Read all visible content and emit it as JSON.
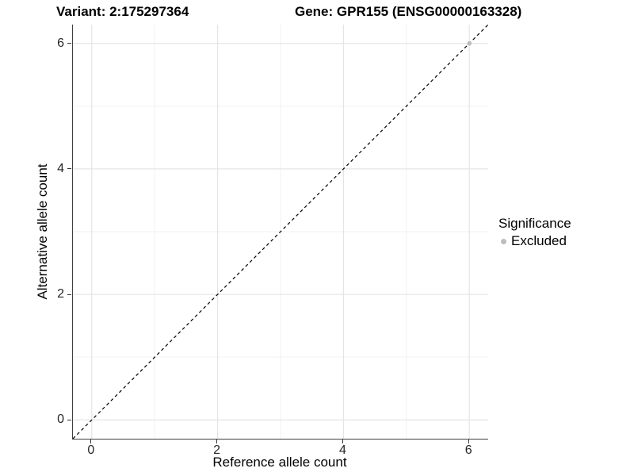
{
  "chart_data": {
    "type": "scatter",
    "titles": {
      "left": "Variant: 2:175297364",
      "right": "Gene: GPR155 (ENSG00000163328)"
    },
    "xlabel": "Reference allele count",
    "ylabel": "Alternative allele count",
    "xlim": [
      -0.3,
      6.3
    ],
    "ylim": [
      -0.3,
      6.3
    ],
    "x_ticks": [
      0,
      2,
      4,
      6
    ],
    "y_ticks": [
      0,
      2,
      4,
      6
    ],
    "x_minor_ticks": [
      1,
      3,
      5
    ],
    "y_minor_ticks": [
      1,
      3,
      5
    ],
    "grid": "on",
    "legend": {
      "title": "Significance",
      "position": "right",
      "items": [
        {
          "label": "Excluded",
          "color": "#bdbdbd"
        }
      ]
    },
    "series": [
      {
        "name": "Excluded",
        "color": "#bdbdbd",
        "points": [
          [
            6,
            6
          ]
        ]
      }
    ],
    "reference_line": {
      "slope": 1,
      "intercept": 0,
      "style": "dashed",
      "color": "#000000"
    }
  },
  "style": {
    "grid_major_color": "#e5e5e5",
    "grid_minor_color": "#f2f2f2",
    "axis_line_color": "#3f3f3f",
    "tick_mark_color": "#333333",
    "point_radius": 2.8,
    "legend_dot_color": "#bdbdbd"
  }
}
